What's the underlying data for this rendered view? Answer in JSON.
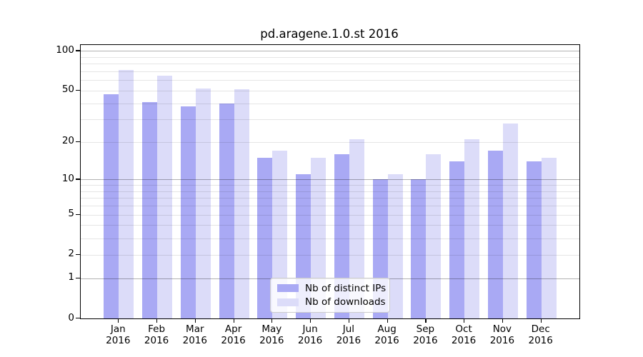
{
  "title": "pd.aragene.1.0.st 2016",
  "legend": {
    "items": [
      {
        "key": "ips",
        "label": "Nb of distinct IPs"
      },
      {
        "key": "downloads",
        "label": "Nb of downloads"
      }
    ]
  },
  "colors": {
    "ips": "#a9a9f4",
    "downloads": "#dcdcf9",
    "grid_minor": "rgba(0,0,0,0.10)",
    "grid_decade": "rgba(0,0,0,0.30)",
    "frame": "#000000",
    "text": "#000000",
    "legend_border": "#cccccc",
    "legend_background": "rgba(255,255,255,0.8)"
  },
  "y_axis": {
    "tick_values": [
      100,
      50,
      20,
      10,
      5,
      2,
      1,
      0
    ],
    "tick_labels": [
      "100",
      "50",
      "20",
      "10",
      "5",
      "2",
      "1",
      "0"
    ],
    "minor_gridlines": [
      2,
      3,
      4,
      5,
      6,
      7,
      8,
      9,
      20,
      30,
      40,
      50,
      60,
      70,
      80,
      90
    ],
    "decade_gridlines": [
      1,
      10,
      100
    ]
  },
  "chart_data": {
    "type": "bar",
    "categories": [
      "Jan 2016",
      "Feb 2016",
      "Mar 2016",
      "Apr 2016",
      "May 2016",
      "Jun 2016",
      "Jul 2016",
      "Aug 2016",
      "Sep 2016",
      "Oct 2016",
      "Nov 2016",
      "Dec 2016"
    ],
    "series": [
      {
        "key": "ips",
        "name": "Nb of distinct IPs",
        "values": [
          47,
          41,
          38,
          40,
          15,
          11,
          16,
          10,
          10,
          14,
          17,
          14
        ]
      },
      {
        "key": "downloads",
        "name": "Nb of downloads",
        "values": [
          72,
          65,
          52,
          51,
          17,
          15,
          21,
          11,
          16,
          21,
          28,
          15
        ]
      }
    ],
    "title": "pd.aragene.1.0.st 2016",
    "xlabel": "",
    "ylabel": "",
    "yscale": "log1p",
    "ylim": [
      0,
      111
    ],
    "yticks": [
      0,
      1,
      2,
      5,
      10,
      20,
      50,
      100
    ],
    "grid": true,
    "legend_position": "lower center"
  }
}
